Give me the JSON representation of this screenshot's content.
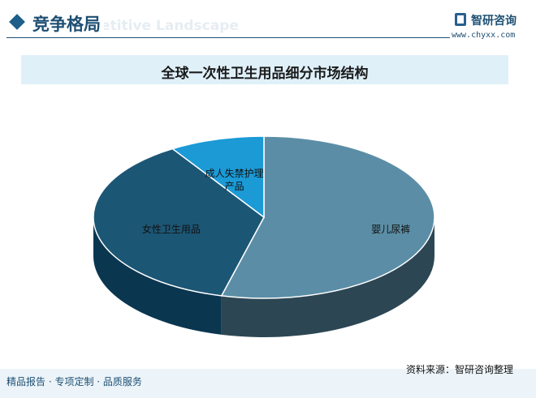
{
  "header": {
    "title": "竞争格局",
    "subtitle": "Competitive Landscape",
    "brand": "智研咨询",
    "url": "www.chyxx.com"
  },
  "chart_data": {
    "type": "pie",
    "title": "全球一次性卫生用品细分市场结构",
    "categories": [
      "婴儿尿裤",
      "女性卫生用品",
      "成人失禁护理产品"
    ],
    "values": [
      54,
      37,
      9
    ],
    "colors": [
      "#5b8ea6",
      "#1c5675",
      "#1b9ad6"
    ],
    "side_colors": [
      "#2c4654",
      "#0b3650",
      "#0f5e87"
    ]
  },
  "footer": {
    "left": "精品报告 · 专项定制 · 品质服务",
    "right": "资料来源：智研咨询整理"
  }
}
